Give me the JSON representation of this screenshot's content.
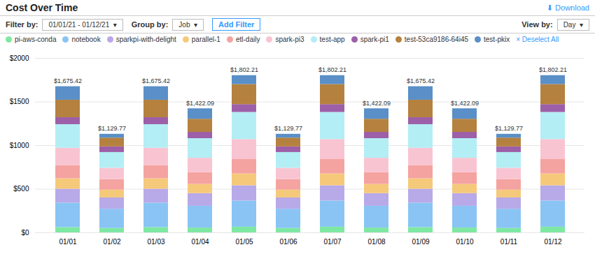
{
  "chart_data": {
    "type": "bar",
    "title": "Cost Over Time",
    "annotations": [
      "⬇ Download",
      "Filter by:",
      "01/01/21 - 01/12/21  ▾",
      "Group by:",
      "Job  ▾",
      "Add Filter",
      "View by:",
      "Day  ▾",
      "× Deselect All"
    ],
    "categories": [
      "01/01",
      "01/02",
      "01/03",
      "01/04",
      "01/05",
      "01/06",
      "01/07",
      "01/08",
      "01/09",
      "01/10",
      "01/11",
      "01/12"
    ],
    "series": [
      {
        "name": "pi-aws-conda",
        "color": "#7ee8a2",
        "values": [
          60.015,
          50.0341,
          60.015,
          55.0035,
          65.0076,
          50.0341,
          65.0076,
          55.0035,
          60.015,
          55.0035,
          50.0341,
          65.0076
        ]
      },
      {
        "name": "notebook",
        "color": "#89c4f4",
        "values": [
          280.0702,
          220.15,
          280.0702,
          250.0158,
          300.035,
          220.15,
          300.035,
          250.0158,
          280.0702,
          250.0158,
          220.15,
          300.035
        ]
      },
      {
        "name": "sparkpi-with-delight",
        "color": "#b8a9e8",
        "values": [
          160.0401,
          130.0887,
          160.0401,
          145.0092,
          175.0204,
          130.0887,
          175.0204,
          145.0092,
          160.0401,
          145.0092,
          130.0887,
          175.0204
        ]
      },
      {
        "name": "parallel-1",
        "color": "#f5c97a",
        "values": [
          120.0301,
          90.0614,
          120.0301,
          105.0066,
          135.0157,
          90.0614,
          135.0157,
          105.0066,
          120.0301,
          105.0066,
          90.0614,
          135.0157
        ]
      },
      {
        "name": "etl-daily",
        "color": "#f4a3a0",
        "values": [
          150.0376,
          120.0818,
          150.0376,
          135.0085,
          165.0192,
          120.0818,
          165.0192,
          135.0085,
          150.0376,
          135.0085,
          120.0818,
          165.0192
        ]
      },
      {
        "name": "spark-pi3",
        "color": "#f9c4d2",
        "values": [
          200.0501,
          130.0887,
          200.0501,
          165.0104,
          230.0268,
          130.0887,
          230.0268,
          165.0104,
          200.0501,
          165.0104,
          130.0887,
          230.0268
        ]
      },
      {
        "name": "test-app",
        "color": "#b3eef5",
        "values": [
          270.0677,
          180.1228,
          270.0677,
          225.0142,
          310.0361,
          180.1228,
          310.0361,
          225.0142,
          270.0677,
          225.0142,
          180.1228,
          310.0361
        ]
      },
      {
        "name": "spark-pi1",
        "color": "#9d5fa8",
        "values": [
          80.0201,
          65.0443,
          80.0201,
          72.0046,
          90.0105,
          65.0443,
          90.0105,
          72.0046,
          80.0201,
          72.0046,
          65.0443,
          90.0105
        ]
      },
      {
        "name": "test-53ca9186-64i45",
        "color": "#b5813e",
        "values": [
          200.0501,
          100.0682,
          200.0501,
          150.0095,
          230.0268,
          100.0682,
          230.0268,
          150.0095,
          200.0501,
          150.0095,
          100.0682,
          230.0268
        ]
      },
      {
        "name": "test-pkix",
        "color": "#5a8fc7",
        "values": [
          155.0389,
          44.03,
          155.0389,
          120.0076,
          102.0119,
          44.03,
          102.0119,
          120.0076,
          155.0389,
          120.0076,
          44.03,
          102.0119
        ]
      }
    ],
    "totals": [
      1675.42,
      1129.77,
      1675.42,
      1422.09,
      1802.21,
      1129.77,
      1802.21,
      1422.09,
      1675.42,
      1422.09,
      1129.77,
      1802.21
    ],
    "total_labels": [
      "$1,675.42",
      "$1,129.77",
      "$1,675.42",
      "$1,422.09",
      "$1,802.21",
      "$1,129.77",
      "$1,802.21",
      "$1,422.09",
      "$1,675.42",
      "$1,422.09",
      "$1,129.77",
      "$1,802.21"
    ],
    "ylim": [
      0,
      2000
    ],
    "yticks": [
      {
        "value": 0,
        "label": "$0"
      },
      {
        "value": 500,
        "label": "$500"
      },
      {
        "value": 1000,
        "label": "$1000"
      },
      {
        "value": 1500,
        "label": "$1500"
      },
      {
        "value": 2000,
        "label": "$2000"
      }
    ],
    "grid": true,
    "stacked": true,
    "legend": "top"
  }
}
